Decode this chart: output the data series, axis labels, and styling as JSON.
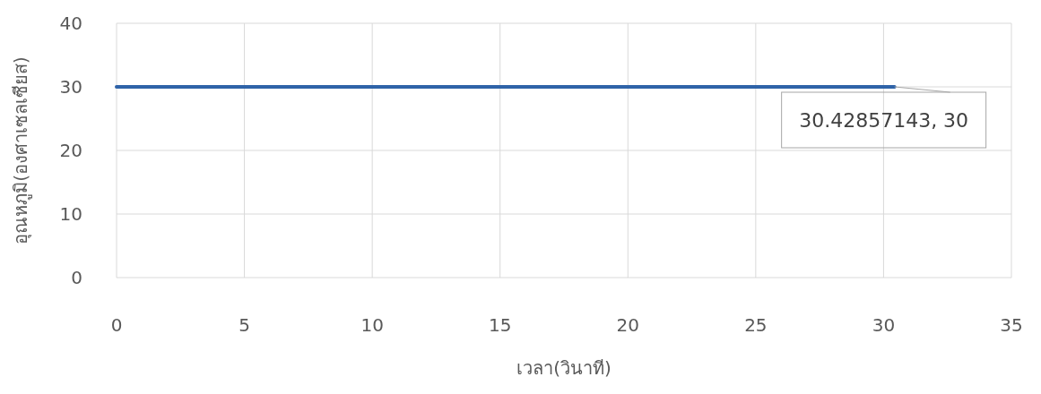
{
  "chart_data": {
    "type": "line",
    "xlabel": "เวลา(วินาที)",
    "ylabel": "อุณหภูมิ(องศาเซลเซียส)",
    "x": [
      0,
      30.42857143
    ],
    "series": [
      {
        "color": "#2e63a8",
        "values": [
          30,
          30
        ]
      }
    ],
    "xlim": [
      0,
      35
    ],
    "xticks": [
      0,
      5,
      10,
      15,
      20,
      25,
      30,
      35
    ],
    "ylim": [
      0,
      40
    ],
    "yticks": [
      0,
      10,
      20,
      30,
      40
    ],
    "grid": true,
    "marker": "none",
    "line_style": "solid",
    "annotations": [
      {
        "text": "30.42857143, 30",
        "x": 30.42857143,
        "y": 30
      }
    ]
  }
}
